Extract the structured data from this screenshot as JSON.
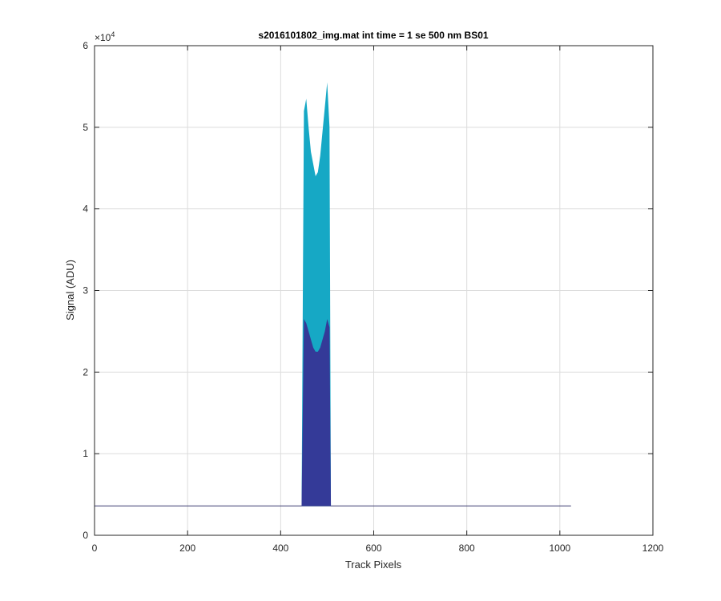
{
  "chart_data": {
    "type": "area",
    "title": "s2016101802_img.mat int time = 1 se  500 nm BS01",
    "xlabel": "Track Pixels",
    "ylabel": "Signal (ADU)",
    "xlim": [
      0,
      1200
    ],
    "ylim": [
      0,
      60000
    ],
    "x_ticks": [
      "0",
      "200",
      "400",
      "600",
      "800",
      "1000",
      "1200"
    ],
    "y_ticks": [
      "0",
      "1",
      "2",
      "3",
      "4",
      "5",
      "6"
    ],
    "y_exponent_base": "×10",
    "y_exponent_power": "4",
    "grid": true,
    "colors": {
      "upper": "#16a8c5",
      "lower": "#343a98",
      "baseline": "#3a3a70"
    },
    "series": [
      {
        "baseline": 3600,
        "baseline_x_range": [
          0,
          1024
        ],
        "peak_x": [
          445,
          450,
          455,
          460,
          465,
          470,
          475,
          480,
          485,
          490,
          495,
          500,
          505,
          508
        ],
        "peak_top": [
          3600,
          52000,
          53500,
          50000,
          47000,
          45500,
          44000,
          44500,
          46500,
          49500,
          52500,
          55500,
          50000,
          3600
        ],
        "lower_top": [
          3600,
          26500,
          26000,
          25000,
          24000,
          23000,
          22500,
          22500,
          23000,
          24000,
          25000,
          26500,
          25500,
          3600
        ]
      }
    ]
  }
}
